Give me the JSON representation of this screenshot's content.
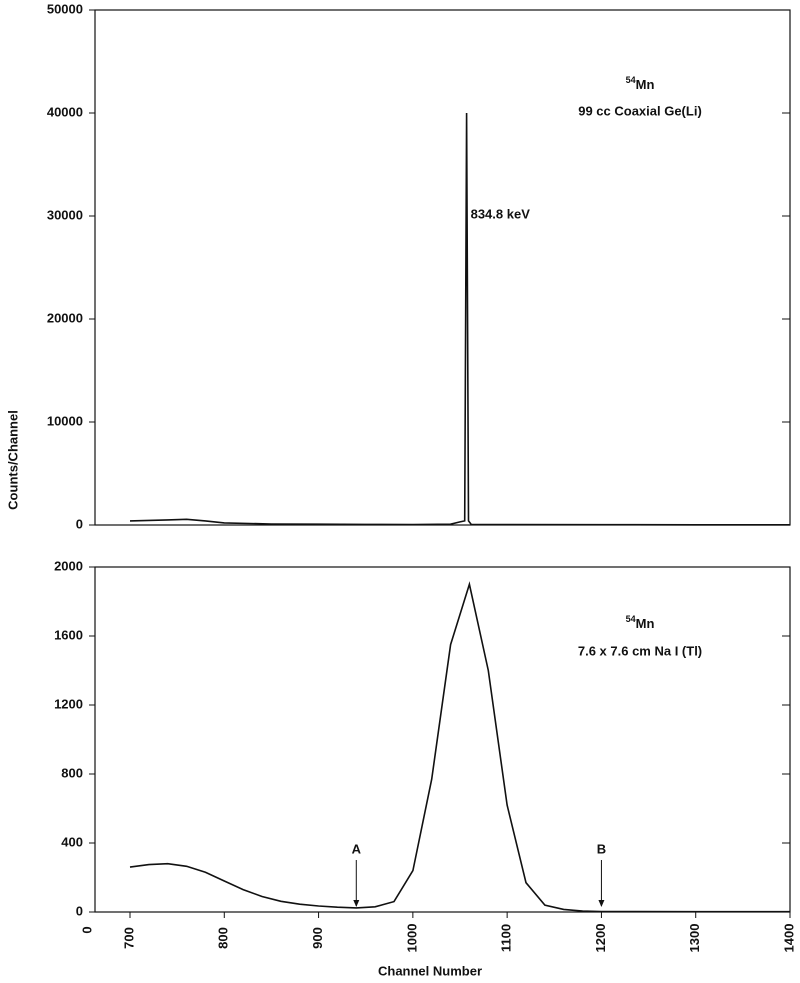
{
  "chart_data": [
    {
      "type": "line",
      "source_label": {
        "superscript": "54",
        "text": "Mn"
      },
      "detector_label": "99 cc Coaxial Ge(Li)",
      "annotations": [
        {
          "text": "834.8 keV",
          "x": 1057
        }
      ],
      "xlim": [
        700,
        1400
      ],
      "ylim": [
        0,
        50000
      ],
      "yticks": [
        0,
        10000,
        20000,
        30000,
        40000,
        50000
      ],
      "series": [
        {
          "color": "#111111",
          "x": [
            700,
            720,
            740,
            760,
            780,
            800,
            850,
            900,
            950,
            1000,
            1040,
            1050,
            1055,
            1057,
            1059,
            1062,
            1100,
            1200,
            1300,
            1400
          ],
          "values": [
            400,
            450,
            500,
            550,
            400,
            200,
            100,
            80,
            60,
            50,
            80,
            300,
            400,
            40000,
            400,
            50,
            40,
            30,
            20,
            15
          ]
        }
      ]
    },
    {
      "type": "line",
      "source_label": {
        "superscript": "54",
        "text": "Mn"
      },
      "detector_label": "7.6 x 7.6 cm Na I (Tl)",
      "annotations": [
        {
          "text": "A",
          "x": 940
        },
        {
          "text": "B",
          "x": 1200
        }
      ],
      "xlabel": "Channel Number",
      "ylabel": "Counts/Channel",
      "x_origin_label": "0",
      "xlim": [
        700,
        1400
      ],
      "xticks": [
        700,
        800,
        900,
        1000,
        1100,
        1200,
        1300,
        1400
      ],
      "ylim": [
        0,
        2000
      ],
      "yticks": [
        0,
        400,
        800,
        1200,
        1600,
        2000
      ],
      "series": [
        {
          "color": "#111111",
          "x": [
            700,
            720,
            740,
            760,
            780,
            800,
            820,
            840,
            860,
            880,
            900,
            920,
            940,
            960,
            980,
            1000,
            1020,
            1040,
            1060,
            1080,
            1100,
            1120,
            1140,
            1160,
            1180,
            1200,
            1300,
            1400
          ],
          "values": [
            260,
            275,
            280,
            265,
            230,
            180,
            130,
            90,
            62,
            45,
            35,
            28,
            24,
            30,
            60,
            240,
            770,
            1550,
            1900,
            1400,
            620,
            170,
            40,
            15,
            5,
            3,
            2,
            2
          ]
        }
      ]
    }
  ]
}
